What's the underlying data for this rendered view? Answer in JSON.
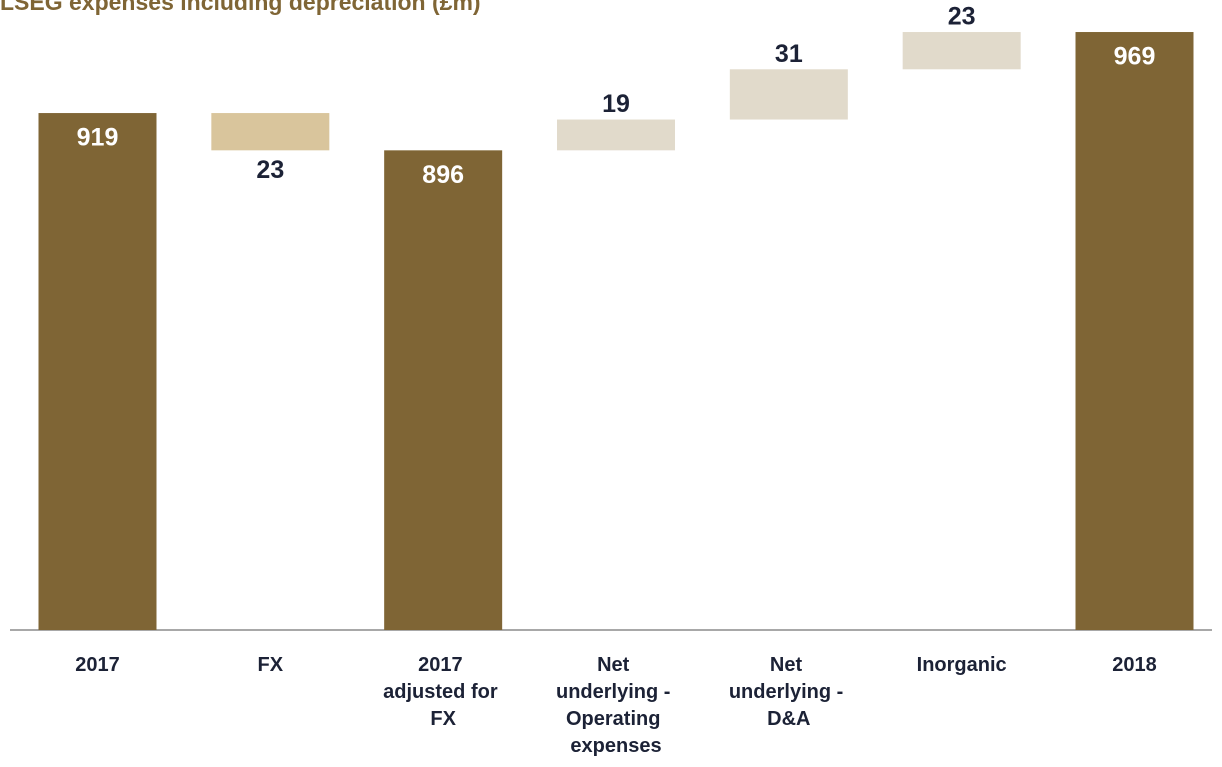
{
  "chart_data": {
    "type": "waterfall",
    "title": "LSEG expenses including depreciation (£m)",
    "categories": [
      "2017",
      "FX",
      "2017 adjusted for FX",
      "Net underlying - Operating expenses",
      "Net underlying - D&A",
      "Inorganic",
      "2018"
    ],
    "values": [
      919,
      23,
      896,
      19,
      31,
      23,
      969
    ],
    "measure": [
      "total",
      "decrease",
      "total",
      "increase",
      "increase",
      "increase",
      "total"
    ],
    "colors": {
      "total": "#7f6535",
      "decrease": "#d9c59c",
      "increase": "#e1dacb"
    },
    "ylim": [
      600,
      990
    ]
  }
}
